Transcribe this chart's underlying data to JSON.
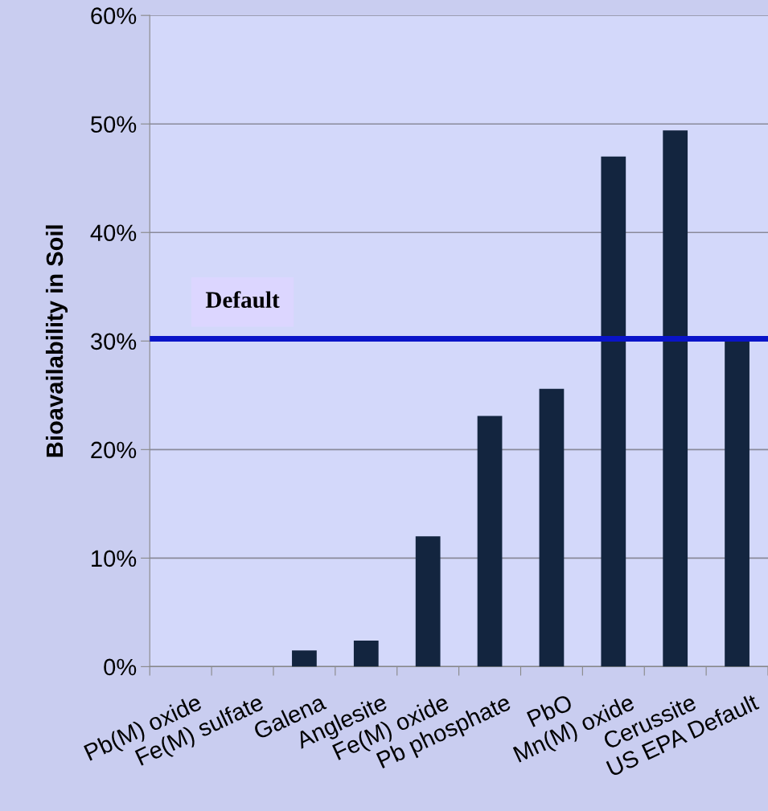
{
  "chart_data": {
    "type": "bar",
    "ylabel": "Bioavailability in Soil",
    "categories": [
      "Pb(M) oxide",
      "Fe(M) sulfate",
      "Galena",
      "Anglesite",
      "Fe(M) oxide",
      "Pb phosphate",
      "PbO",
      "Mn(M) oxide",
      "Cerussite",
      "US EPA Default"
    ],
    "values": [
      0,
      0,
      1.5,
      2.4,
      12,
      23.1,
      25.6,
      47,
      49.4,
      30
    ],
    "color": "#13253f",
    "ylim": [
      0,
      60
    ],
    "yticks": [
      {
        "value": 0,
        "label": "0%"
      },
      {
        "value": 10,
        "label": "10%"
      },
      {
        "value": 20,
        "label": "20%"
      },
      {
        "value": 30,
        "label": "30%"
      },
      {
        "value": 40,
        "label": "40%"
      },
      {
        "value": 50,
        "label": "50%"
      },
      {
        "value": 60,
        "label": "60%"
      }
    ],
    "grid": "y",
    "ref_lines": [
      {
        "axis": "y",
        "value": 30.2,
        "label": "Default",
        "color": "#0a14c8",
        "line_style": "solid"
      }
    ]
  }
}
